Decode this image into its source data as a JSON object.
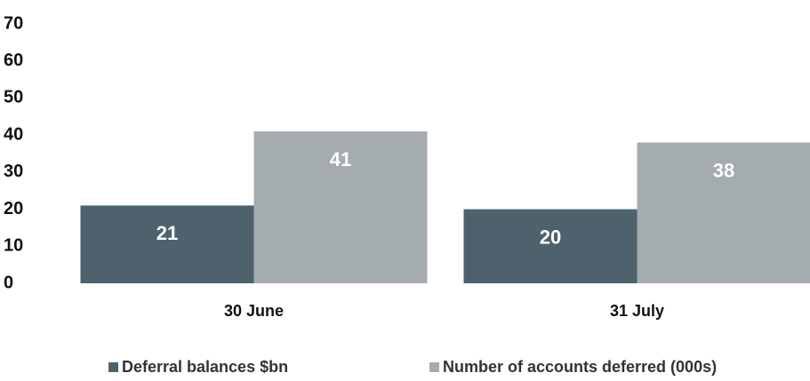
{
  "chart_data": {
    "type": "bar",
    "categories": [
      "30 June",
      "31 July"
    ],
    "series": [
      {
        "name": "Deferral balances $bn",
        "color": "#4d626c",
        "values": [
          21,
          20
        ]
      },
      {
        "name": "Number of accounts deferred (000s)",
        "color": "#a5acaf",
        "values": [
          41,
          38
        ]
      }
    ],
    "ylim": [
      0,
      70
    ],
    "yticks": [
      0,
      10,
      20,
      30,
      40,
      50,
      60,
      70
    ],
    "grid": false,
    "legend": "bottom"
  }
}
